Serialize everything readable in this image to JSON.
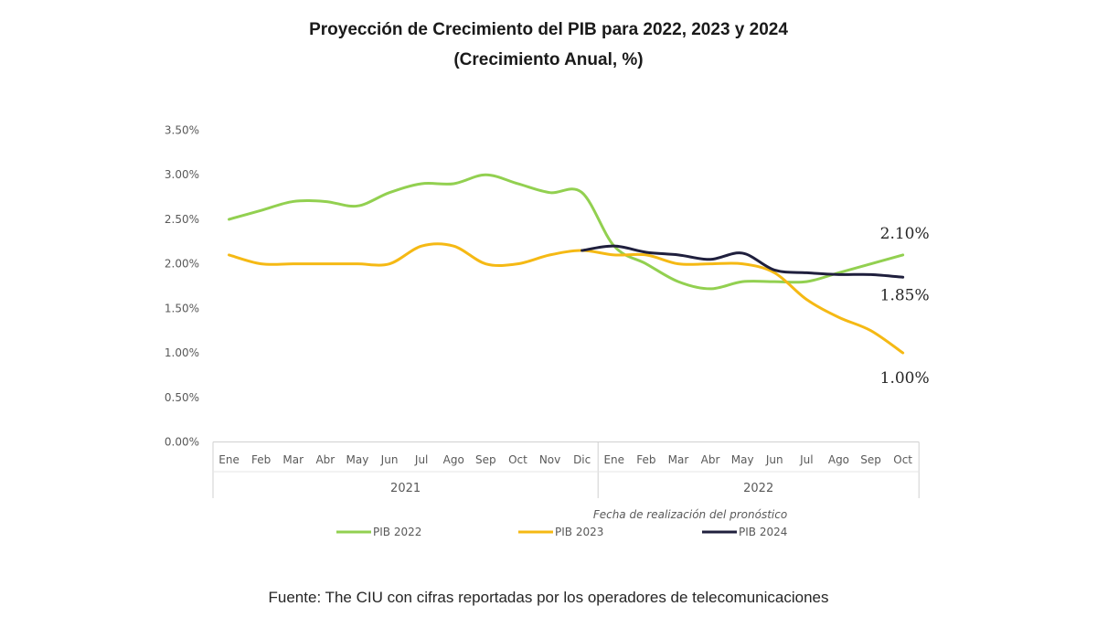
{
  "chart_data": {
    "type": "line",
    "title": "Proyección de Crecimiento del PIB para 2022, 2023 y 2024",
    "subtitle": "(Crecimiento Anual, %)",
    "xlabel": "Fecha de realización del pronóstico",
    "ylabel": "",
    "ylim": [
      0,
      3.5
    ],
    "yticks": [
      "3.50%",
      "3.00%",
      "2.50%",
      "2.00%",
      "1.50%",
      "1.00%",
      "0.50%",
      "0.00%"
    ],
    "categories": [
      "Ene",
      "Feb",
      "Mar",
      "Abr",
      "May",
      "Jun",
      "Jul",
      "Ago",
      "Sep",
      "Oct",
      "Nov",
      "Dic",
      "Ene",
      "Feb",
      "Mar",
      "Abr",
      "May",
      "Jun",
      "Jul",
      "Ago",
      "Sep",
      "Oct"
    ],
    "year_groups": [
      {
        "label": "2021",
        "count": 12
      },
      {
        "label": "2022",
        "count": 10
      }
    ],
    "series": [
      {
        "name": "PIB 2022",
        "color": "#92d050",
        "values": [
          2.5,
          2.6,
          2.7,
          2.7,
          2.65,
          2.8,
          2.9,
          2.9,
          3.0,
          2.9,
          2.8,
          2.8,
          2.2,
          2.0,
          1.8,
          1.72,
          1.8,
          1.8,
          1.8,
          1.9,
          2.0,
          2.1
        ]
      },
      {
        "name": "PIB 2023",
        "color": "#f5b914",
        "values": [
          2.1,
          2.0,
          2.0,
          2.0,
          2.0,
          2.0,
          2.2,
          2.2,
          2.0,
          2.0,
          2.1,
          2.15,
          2.1,
          2.1,
          2.0,
          2.0,
          2.0,
          1.9,
          1.6,
          1.4,
          1.25,
          1.0
        ]
      },
      {
        "name": "PIB 2024",
        "color": "#1f1f3d",
        "values": [
          null,
          null,
          null,
          null,
          null,
          null,
          null,
          null,
          null,
          null,
          null,
          2.15,
          2.2,
          2.13,
          2.1,
          2.05,
          2.12,
          1.93,
          1.9,
          1.88,
          1.88,
          1.85
        ]
      }
    ],
    "annotations": [
      {
        "text": "2.10%",
        "series": "PIB 2022"
      },
      {
        "text": "1.85%",
        "series": "PIB 2024"
      },
      {
        "text": "1.00%",
        "series": "PIB 2023"
      }
    ],
    "grid": false,
    "legend": "bottom"
  },
  "source": "Fuente: The CIU con cifras reportadas por los operadores de telecomunicaciones"
}
